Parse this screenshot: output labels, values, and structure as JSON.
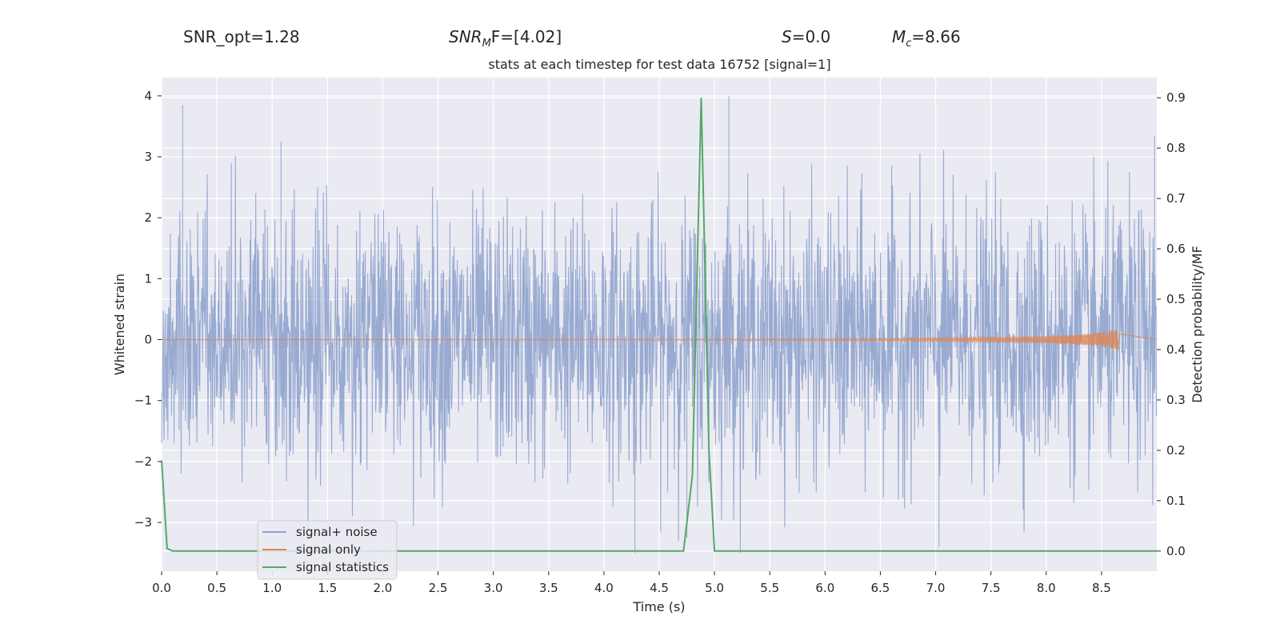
{
  "header": {
    "snr_opt": "SNR_opt=1.28",
    "snr_mf_main": "SNR",
    "snr_mf_sub": "M",
    "snr_mf_rest": "F=[4.02]",
    "s_var": "S",
    "s_value": "=0.0",
    "mc_var": "M",
    "mc_sub": "c",
    "mc_value": "=8.66"
  },
  "colors": {
    "plot_bg": "#eaeaf2",
    "grid": "#ffffff",
    "noise": "#8fa3cd",
    "signal": "#dd8452",
    "stat": "#55a868"
  },
  "chart_data": {
    "type": "line",
    "title": "stats at each timestep for test data 16752 [signal=1]",
    "xlabel": "Time (s)",
    "ylabel": "Whitened strain",
    "y2label": "Detection probability/MF",
    "xlim": [
      0,
      9.0
    ],
    "ylim": [
      -3.8,
      4.3
    ],
    "y2lim": [
      -0.04,
      0.94
    ],
    "xticks": [
      "0.0",
      "0.5",
      "1.0",
      "1.5",
      "2.0",
      "2.5",
      "3.0",
      "3.5",
      "4.0",
      "4.5",
      "5.0",
      "5.5",
      "6.0",
      "6.5",
      "7.0",
      "7.5",
      "8.0",
      "8.5"
    ],
    "yticks": [
      "4",
      "3",
      "2",
      "1",
      "0",
      "−1",
      "−2",
      "−3"
    ],
    "y2ticks": [
      "0.9",
      "0.8",
      "0.7",
      "0.6",
      "0.5",
      "0.4",
      "0.3",
      "0.2",
      "0.1",
      "0.0"
    ],
    "legend_position": "lower-left",
    "grid": true,
    "series": [
      {
        "name": "signal+ noise",
        "axis": "left",
        "description_range": [
          -3.5,
          4.0
        ],
        "highlights": [
          [
            0.19,
            3.85
          ],
          [
            5.13,
            4.0
          ],
          [
            4.28,
            -3.5
          ],
          [
            7.03,
            -3.4
          ],
          [
            8.98,
            3.35
          ],
          [
            1.08,
            3.25
          ],
          [
            4.75,
            -3.25
          ]
        ]
      },
      {
        "name": "signal only",
        "axis": "left",
        "x": [
          0.0,
          5.0,
          6.5,
          7.5,
          8.0,
          8.4,
          8.6,
          8.66
        ],
        "amplitude": [
          0.0,
          0.01,
          0.02,
          0.04,
          0.06,
          0.1,
          0.15,
          0.18
        ]
      },
      {
        "name": "signal statistics",
        "axis": "right",
        "x": [
          0.0,
          0.05,
          0.1,
          0.15,
          4.62,
          4.72,
          4.8,
          4.88,
          4.95,
          5.0,
          9.0
        ],
        "y": [
          0.18,
          0.005,
          0.0,
          0.0,
          0.0,
          0.0,
          0.15,
          0.9,
          0.2,
          0.0,
          0.0
        ]
      }
    ]
  }
}
